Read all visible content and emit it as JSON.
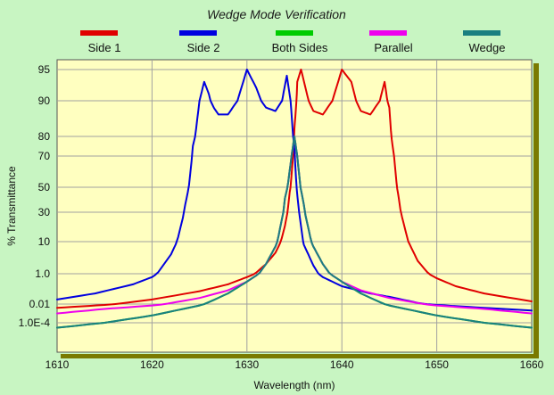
{
  "chart_data": {
    "type": "line",
    "title": "Wedge Mode Verification",
    "xlabel": "Wavelength (nm)",
    "ylabel": "% Transmittance",
    "xlim": [
      1610,
      1660
    ],
    "x_ticks": [
      1610,
      1620,
      1630,
      1640,
      1650,
      1660
    ],
    "y_ticks": [
      {
        "label": "95",
        "value": 95
      },
      {
        "label": "90",
        "value": 90
      },
      {
        "label": "80",
        "value": 80
      },
      {
        "label": "70",
        "value": 70
      },
      {
        "label": "50",
        "value": 50
      },
      {
        "label": "30",
        "value": 30
      },
      {
        "label": "10",
        "value": 10
      },
      {
        "label": "1.0",
        "value": 1.0
      },
      {
        "label": "0.01",
        "value": 0.01
      },
      {
        "label": "1.0E-4",
        "value": 0.0001
      }
    ],
    "grid": true,
    "legend_position": "top",
    "colors": {
      "plot_background": "#ffffc0",
      "page_background": "#c8f5c2",
      "frame_shadow": "#7a7a00"
    },
    "series": [
      {
        "name": "Side 1",
        "color": "#e00000",
        "x": [
          1610,
          1615,
          1620,
          1625,
          1628,
          1630,
          1632,
          1633,
          1634,
          1634.5,
          1635,
          1635.3,
          1635.7,
          1636.5,
          1637,
          1638,
          1639,
          1640,
          1641,
          1641.5,
          1642,
          1643,
          1644,
          1644.5,
          1645,
          1645.5,
          1646,
          1647,
          1648,
          1650,
          1652,
          1655,
          1660
        ],
        "y": [
          0.004,
          0.008,
          0.02,
          0.07,
          0.2,
          0.6,
          2.0,
          4.5,
          18,
          45,
          82,
          93,
          95,
          90,
          87,
          86,
          90,
          95,
          93,
          90,
          87,
          86,
          90,
          93,
          88,
          70,
          40,
          10,
          2.5,
          0.5,
          0.15,
          0.05,
          0.015
        ]
      },
      {
        "name": "Side 2",
        "color": "#0000e0",
        "x": [
          1610,
          1614,
          1618,
          1620,
          1622,
          1623.5,
          1624.3,
          1625,
          1625.5,
          1626,
          1626.5,
          1627,
          1628,
          1629,
          1630,
          1631,
          1632,
          1633,
          1633.7,
          1634.2,
          1634.6,
          1635,
          1635.5,
          1636,
          1637,
          1638,
          1640,
          1643,
          1645,
          1648,
          1650,
          1655,
          1660
        ],
        "y": [
          0.02,
          0.05,
          0.2,
          0.6,
          4,
          35,
          75,
          90,
          93,
          91,
          88,
          86,
          86,
          90,
          95,
          92,
          88,
          87,
          90,
          94,
          90,
          75,
          30,
          8,
          1.8,
          0.6,
          0.15,
          0.05,
          0.03,
          0.012,
          0.008,
          0.004,
          0.002
        ]
      },
      {
        "name": "Both Sides",
        "color": "#00cc00",
        "x": [
          1610,
          1615,
          1620,
          1625,
          1628,
          1630,
          1632,
          1633,
          1634,
          1634.7,
          1635,
          1635.3,
          1636,
          1637,
          1638,
          1640,
          1642,
          1645,
          1650,
          1655,
          1660
        ],
        "y": [
          3e-05,
          0.0001,
          0.0006,
          0.007,
          0.05,
          0.3,
          2.0,
          7,
          40,
          70,
          80,
          70,
          35,
          7,
          2.0,
          0.3,
          0.05,
          0.007,
          0.0006,
          0.0001,
          3e-05
        ]
      },
      {
        "name": "Parallel",
        "color": "#ee00ee",
        "x": [
          1610,
          1615,
          1620,
          1625,
          1628,
          1630,
          1632,
          1633,
          1634,
          1634.7,
          1635,
          1635.3,
          1636,
          1637,
          1638,
          1640,
          1642,
          1645,
          1650,
          1655,
          1660
        ],
        "y": [
          0.001,
          0.003,
          0.007,
          0.025,
          0.08,
          0.3,
          2.0,
          7,
          40,
          70,
          80,
          70,
          35,
          7,
          2.0,
          0.3,
          0.08,
          0.025,
          0.007,
          0.003,
          0.001
        ]
      },
      {
        "name": "Wedge",
        "color": "#1a8080",
        "x": [
          1610,
          1615,
          1620,
          1625,
          1628,
          1630,
          1632,
          1633,
          1634,
          1634.7,
          1635,
          1635.3,
          1636,
          1637,
          1638,
          1640,
          1642,
          1645,
          1650,
          1655,
          1660
        ],
        "y": [
          3e-05,
          0.0001,
          0.0006,
          0.007,
          0.05,
          0.3,
          2.0,
          7,
          40,
          70,
          80,
          70,
          35,
          7,
          2.0,
          0.3,
          0.05,
          0.007,
          0.0006,
          0.0001,
          3e-05
        ]
      }
    ]
  }
}
